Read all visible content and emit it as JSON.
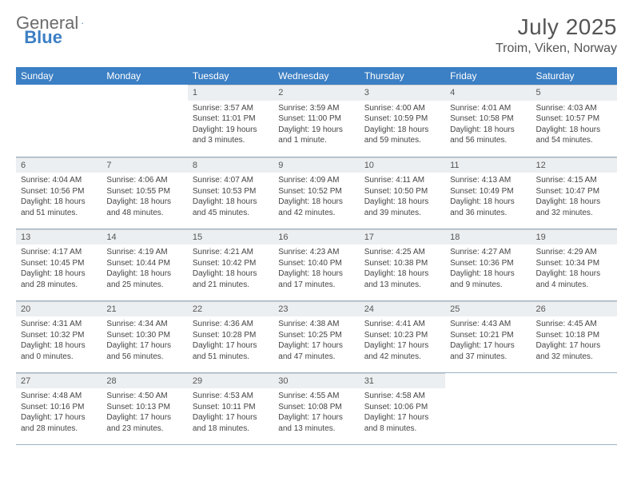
{
  "brand": {
    "part1": "General",
    "part2": "Blue"
  },
  "title": "July 2025",
  "location": "Troim, Viken, Norway",
  "weekday_header_bg": "#3b7fc4",
  "weekday_header_fg": "#ffffff",
  "daynum_bg": "#eceff1",
  "divider_color": "#9bb2c4",
  "text_color": "#444444",
  "weekdays": [
    "Sunday",
    "Monday",
    "Tuesday",
    "Wednesday",
    "Thursday",
    "Friday",
    "Saturday"
  ],
  "weeks": [
    [
      null,
      null,
      {
        "n": "1",
        "sr": "Sunrise: 3:57 AM",
        "ss": "Sunset: 11:01 PM",
        "dl": "Daylight: 19 hours and 3 minutes."
      },
      {
        "n": "2",
        "sr": "Sunrise: 3:59 AM",
        "ss": "Sunset: 11:00 PM",
        "dl": "Daylight: 19 hours and 1 minute."
      },
      {
        "n": "3",
        "sr": "Sunrise: 4:00 AM",
        "ss": "Sunset: 10:59 PM",
        "dl": "Daylight: 18 hours and 59 minutes."
      },
      {
        "n": "4",
        "sr": "Sunrise: 4:01 AM",
        "ss": "Sunset: 10:58 PM",
        "dl": "Daylight: 18 hours and 56 minutes."
      },
      {
        "n": "5",
        "sr": "Sunrise: 4:03 AM",
        "ss": "Sunset: 10:57 PM",
        "dl": "Daylight: 18 hours and 54 minutes."
      }
    ],
    [
      {
        "n": "6",
        "sr": "Sunrise: 4:04 AM",
        "ss": "Sunset: 10:56 PM",
        "dl": "Daylight: 18 hours and 51 minutes."
      },
      {
        "n": "7",
        "sr": "Sunrise: 4:06 AM",
        "ss": "Sunset: 10:55 PM",
        "dl": "Daylight: 18 hours and 48 minutes."
      },
      {
        "n": "8",
        "sr": "Sunrise: 4:07 AM",
        "ss": "Sunset: 10:53 PM",
        "dl": "Daylight: 18 hours and 45 minutes."
      },
      {
        "n": "9",
        "sr": "Sunrise: 4:09 AM",
        "ss": "Sunset: 10:52 PM",
        "dl": "Daylight: 18 hours and 42 minutes."
      },
      {
        "n": "10",
        "sr": "Sunrise: 4:11 AM",
        "ss": "Sunset: 10:50 PM",
        "dl": "Daylight: 18 hours and 39 minutes."
      },
      {
        "n": "11",
        "sr": "Sunrise: 4:13 AM",
        "ss": "Sunset: 10:49 PM",
        "dl": "Daylight: 18 hours and 36 minutes."
      },
      {
        "n": "12",
        "sr": "Sunrise: 4:15 AM",
        "ss": "Sunset: 10:47 PM",
        "dl": "Daylight: 18 hours and 32 minutes."
      }
    ],
    [
      {
        "n": "13",
        "sr": "Sunrise: 4:17 AM",
        "ss": "Sunset: 10:45 PM",
        "dl": "Daylight: 18 hours and 28 minutes."
      },
      {
        "n": "14",
        "sr": "Sunrise: 4:19 AM",
        "ss": "Sunset: 10:44 PM",
        "dl": "Daylight: 18 hours and 25 minutes."
      },
      {
        "n": "15",
        "sr": "Sunrise: 4:21 AM",
        "ss": "Sunset: 10:42 PM",
        "dl": "Daylight: 18 hours and 21 minutes."
      },
      {
        "n": "16",
        "sr": "Sunrise: 4:23 AM",
        "ss": "Sunset: 10:40 PM",
        "dl": "Daylight: 18 hours and 17 minutes."
      },
      {
        "n": "17",
        "sr": "Sunrise: 4:25 AM",
        "ss": "Sunset: 10:38 PM",
        "dl": "Daylight: 18 hours and 13 minutes."
      },
      {
        "n": "18",
        "sr": "Sunrise: 4:27 AM",
        "ss": "Sunset: 10:36 PM",
        "dl": "Daylight: 18 hours and 9 minutes."
      },
      {
        "n": "19",
        "sr": "Sunrise: 4:29 AM",
        "ss": "Sunset: 10:34 PM",
        "dl": "Daylight: 18 hours and 4 minutes."
      }
    ],
    [
      {
        "n": "20",
        "sr": "Sunrise: 4:31 AM",
        "ss": "Sunset: 10:32 PM",
        "dl": "Daylight: 18 hours and 0 minutes."
      },
      {
        "n": "21",
        "sr": "Sunrise: 4:34 AM",
        "ss": "Sunset: 10:30 PM",
        "dl": "Daylight: 17 hours and 56 minutes."
      },
      {
        "n": "22",
        "sr": "Sunrise: 4:36 AM",
        "ss": "Sunset: 10:28 PM",
        "dl": "Daylight: 17 hours and 51 minutes."
      },
      {
        "n": "23",
        "sr": "Sunrise: 4:38 AM",
        "ss": "Sunset: 10:25 PM",
        "dl": "Daylight: 17 hours and 47 minutes."
      },
      {
        "n": "24",
        "sr": "Sunrise: 4:41 AM",
        "ss": "Sunset: 10:23 PM",
        "dl": "Daylight: 17 hours and 42 minutes."
      },
      {
        "n": "25",
        "sr": "Sunrise: 4:43 AM",
        "ss": "Sunset: 10:21 PM",
        "dl": "Daylight: 17 hours and 37 minutes."
      },
      {
        "n": "26",
        "sr": "Sunrise: 4:45 AM",
        "ss": "Sunset: 10:18 PM",
        "dl": "Daylight: 17 hours and 32 minutes."
      }
    ],
    [
      {
        "n": "27",
        "sr": "Sunrise: 4:48 AM",
        "ss": "Sunset: 10:16 PM",
        "dl": "Daylight: 17 hours and 28 minutes."
      },
      {
        "n": "28",
        "sr": "Sunrise: 4:50 AM",
        "ss": "Sunset: 10:13 PM",
        "dl": "Daylight: 17 hours and 23 minutes."
      },
      {
        "n": "29",
        "sr": "Sunrise: 4:53 AM",
        "ss": "Sunset: 10:11 PM",
        "dl": "Daylight: 17 hours and 18 minutes."
      },
      {
        "n": "30",
        "sr": "Sunrise: 4:55 AM",
        "ss": "Sunset: 10:08 PM",
        "dl": "Daylight: 17 hours and 13 minutes."
      },
      {
        "n": "31",
        "sr": "Sunrise: 4:58 AM",
        "ss": "Sunset: 10:06 PM",
        "dl": "Daylight: 17 hours and 8 minutes."
      },
      null,
      null
    ]
  ]
}
